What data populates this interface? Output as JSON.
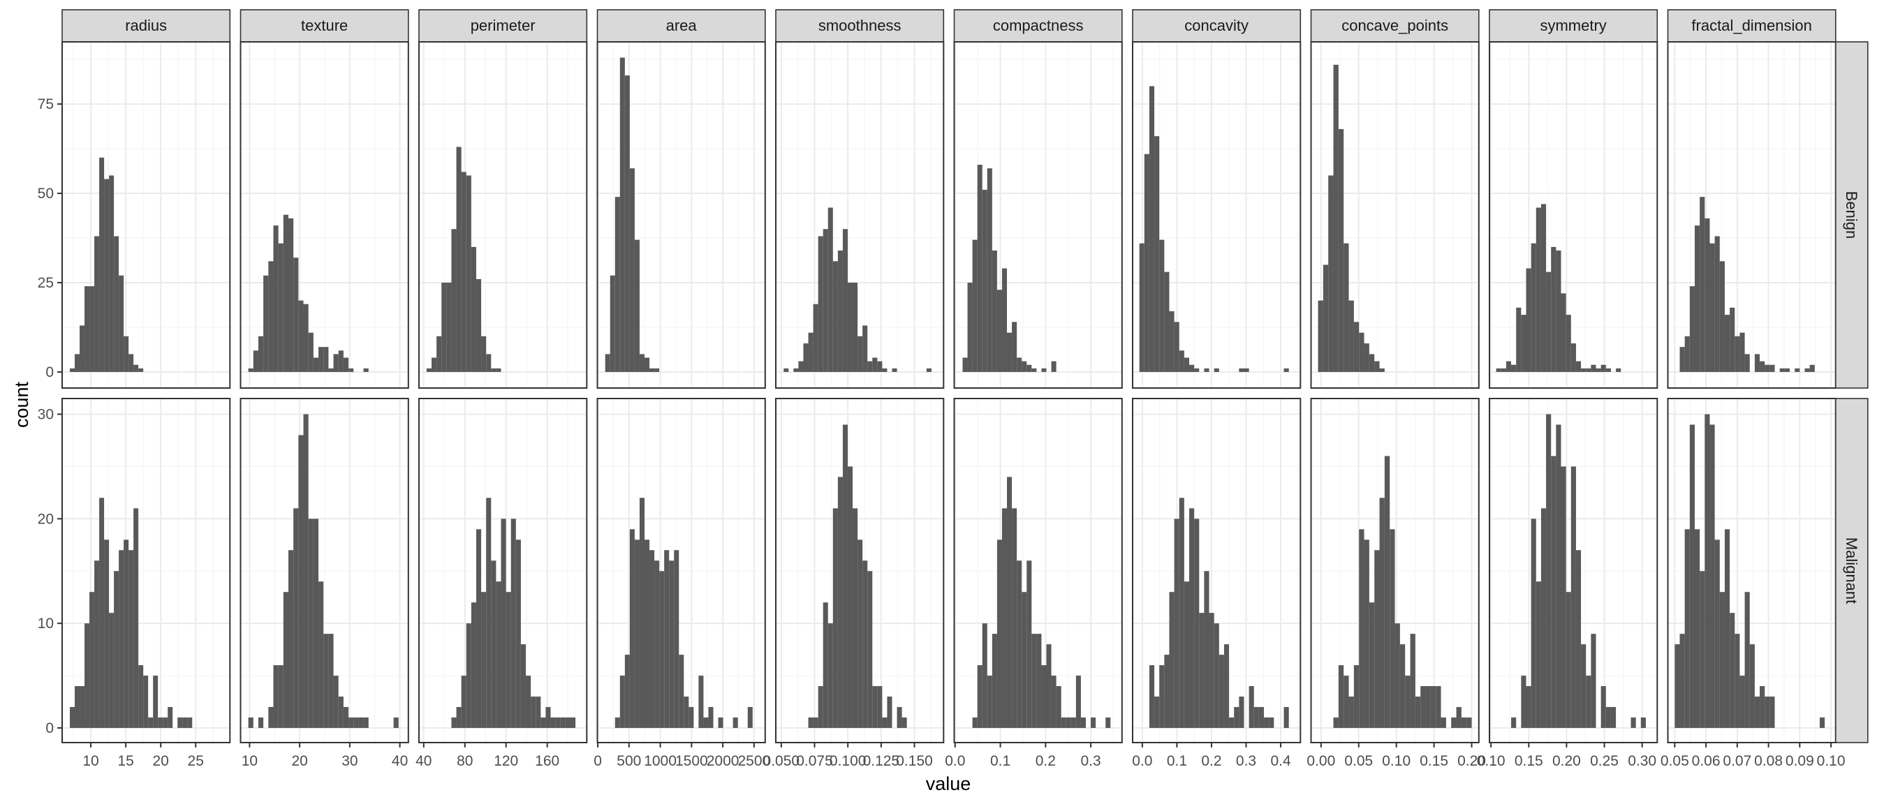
{
  "chart_data": {
    "type": "histogram",
    "title": "",
    "xlabel": "value",
    "ylabel": "count",
    "grid": true,
    "facet_rows": [
      "Benign",
      "Malignant"
    ],
    "row_ylim": {
      "Benign": [
        -4.5,
        92.4
      ],
      "Malignant": [
        -1.4,
        31.5
      ]
    },
    "row_yticks": {
      "Benign": [
        0,
        25,
        50,
        75
      ],
      "Malignant": [
        0,
        10,
        20,
        30
      ]
    },
    "colors": {
      "bar": "#595959",
      "panel_border": "#333333",
      "strip_fill": "#d9d9d9",
      "grid_major": "#ebebeb",
      "grid_minor": "#f5f5f5",
      "tick_text": "#4d4d4d"
    },
    "panels": [
      {
        "name": "radius",
        "xlim": [
          5.9,
          29.9
        ],
        "xticks": [
          10,
          15,
          20,
          25
        ],
        "xtick_labels": [
          "10",
          "15",
          "20",
          "25"
        ],
        "bin_start": 7.0,
        "bin_width": 0.7,
        "Benign": [
          1,
          5,
          13,
          24,
          24,
          38,
          60,
          54,
          55,
          38,
          27,
          10,
          5,
          2,
          1
        ],
        "Malignant_offset": 5,
        "Malignant": [
          2,
          4,
          4,
          10,
          13,
          16,
          22,
          18,
          11,
          15,
          17,
          18,
          17,
          21,
          6,
          5,
          1,
          5,
          1,
          1,
          2,
          0,
          1,
          1,
          1
        ]
      },
      {
        "name": "texture",
        "xlim": [
          8.2,
          41.7
        ],
        "xticks": [
          10,
          20,
          30,
          40
        ],
        "xtick_labels": [
          "10",
          "20",
          "30",
          "40"
        ],
        "bin_start": 9.75,
        "bin_width": 1.0,
        "Benign": [
          1,
          6,
          10,
          27,
          31,
          41,
          36,
          44,
          43,
          32,
          20,
          19,
          11,
          4,
          7,
          7,
          1,
          5,
          6,
          4,
          1,
          0,
          0,
          1
        ],
        "Malignant_offset": 0,
        "Malignant": [
          1,
          0,
          1,
          0,
          2,
          6,
          6,
          13,
          17,
          21,
          28,
          30,
          20,
          20,
          14,
          9,
          9,
          5,
          3,
          2,
          1,
          1,
          1,
          1,
          0,
          0,
          0,
          0,
          0,
          1
        ]
      },
      {
        "name": "perimeter",
        "xlim": [
          35.4,
          198.4
        ],
        "xticks": [
          40,
          80,
          120,
          160
        ],
        "xtick_labels": [
          "40",
          "80",
          "120",
          "160"
        ],
        "bin_start": 42.8,
        "bin_width": 4.82,
        "Benign": [
          1,
          4,
          10,
          25,
          25,
          40,
          63,
          56,
          55,
          35,
          26,
          10,
          5,
          1,
          1
        ],
        "Malignant_offset": 0,
        "Malignant": [
          0,
          0,
          0,
          0,
          0,
          1,
          2,
          5,
          10,
          12,
          19,
          13,
          22,
          16,
          14,
          20,
          13,
          20,
          18,
          8,
          5,
          3,
          3,
          1,
          2,
          1,
          1,
          1,
          1,
          1
        ]
      },
      {
        "name": "area",
        "xlim": [
          -6,
          2678
        ],
        "xticks": [
          0,
          500,
          1000,
          1500,
          2000,
          2500
        ],
        "xtick_labels": [
          "0",
          "500",
          "1000",
          "1500",
          "2000",
          "2500"
        ],
        "bin_start": 119,
        "bin_width": 78.6,
        "Benign": [
          5,
          27,
          49,
          88,
          83,
          57,
          37,
          5,
          4,
          1,
          1
        ],
        "Malignant_offset": 0,
        "Malignant": [
          0,
          0,
          1,
          5,
          7,
          19,
          18,
          22,
          18,
          17,
          16,
          15,
          17,
          16,
          17,
          7,
          3,
          2,
          0,
          5,
          1,
          2,
          0,
          1,
          0,
          0,
          1,
          0,
          0,
          2
        ]
      },
      {
        "name": "smoothness",
        "xlim": [
          0.0459,
          0.1719
        ],
        "xticks": [
          0.05,
          0.075,
          0.1,
          0.125,
          0.15
        ],
        "xtick_labels": [
          "0.050",
          "0.075",
          "0.100",
          "0.125",
          "0.150"
        ],
        "bin_start": 0.0518,
        "bin_width": 0.0037,
        "Benign": [
          1,
          0,
          1,
          3,
          8,
          11,
          19,
          38,
          40,
          46,
          31,
          34,
          40,
          25,
          25,
          10,
          13,
          3,
          4,
          3,
          1,
          0,
          1,
          0,
          0,
          0,
          0,
          0,
          0,
          1
        ],
        "Malignant_offset": 0,
        "Malignant": [
          0,
          0,
          0,
          0,
          0,
          1,
          1,
          4,
          12,
          10,
          21,
          24,
          29,
          25,
          21,
          18,
          16,
          15,
          4,
          4,
          1,
          3,
          0,
          2,
          1
        ]
      },
      {
        "name": "compactness",
        "xlim": [
          -0.002,
          0.369
        ],
        "xticks": [
          0.0,
          0.1,
          0.2,
          0.3
        ],
        "xtick_labels": [
          "0.0",
          "0.1",
          "0.2",
          "0.3"
        ],
        "bin_start": 0.0165,
        "bin_width": 0.0109,
        "Benign": [
          4,
          25,
          37,
          58,
          51,
          57,
          34,
          23,
          29,
          11,
          14,
          4,
          3,
          2,
          1,
          0,
          1,
          0,
          3
        ],
        "Malignant_offset": 0,
        "Malignant": [
          0,
          0,
          1,
          6,
          10,
          5,
          9,
          18,
          21,
          24,
          21,
          16,
          13,
          16,
          9,
          9,
          6,
          8,
          5,
          4,
          1,
          1,
          1,
          5,
          1,
          0,
          1,
          0,
          0,
          1
        ]
      },
      {
        "name": "concavity",
        "xlim": [
          -0.028,
          0.457
        ],
        "xticks": [
          0.0,
          0.1,
          0.2,
          0.3,
          0.4
        ],
        "xtick_labels": [
          "0.0",
          "0.1",
          "0.2",
          "0.3",
          "0.4"
        ],
        "bin_start": -0.0085,
        "bin_width": 0.0144,
        "Benign": [
          36,
          61,
          80,
          66,
          37,
          28,
          17,
          14,
          6,
          4,
          2,
          1,
          0,
          1,
          0,
          1,
          0,
          0,
          0,
          0,
          1,
          1,
          0,
          0,
          0,
          0,
          0,
          0,
          0,
          1
        ],
        "Malignant_offset": 0,
        "Malignant": [
          0,
          0,
          6,
          3,
          6,
          7,
          13,
          20,
          22,
          14,
          21,
          20,
          11,
          15,
          11,
          10,
          7,
          8,
          1,
          2,
          3,
          0,
          4,
          2,
          2,
          1,
          1,
          0,
          0,
          2
        ]
      },
      {
        "name": "concave_points",
        "xlim": [
          -0.0133,
          0.2095
        ],
        "xticks": [
          0.0,
          0.05,
          0.1,
          0.15,
          0.2
        ],
        "xtick_labels": [
          "0.00",
          "0.05",
          "0.10",
          "0.15",
          "0.20"
        ],
        "bin_start": -0.004,
        "bin_width": 0.0068,
        "Benign": [
          20,
          30,
          55,
          86,
          68,
          36,
          20,
          14,
          11,
          8,
          5,
          3,
          1
        ],
        "Malignant_offset": 0,
        "Malignant": [
          0,
          0,
          0,
          1,
          6,
          5,
          3,
          6,
          19,
          18,
          12,
          17,
          22,
          26,
          19,
          10,
          8,
          5,
          9,
          3,
          4,
          4,
          4,
          4,
          1,
          0,
          1,
          2,
          1,
          1
        ]
      },
      {
        "name": "symmetry",
        "xlim": [
          0.098,
          0.32
        ],
        "xticks": [
          0.1,
          0.15,
          0.2,
          0.25,
          0.3
        ],
        "xtick_labels": [
          "0.10",
          "0.15",
          "0.20",
          "0.25",
          "0.30"
        ],
        "bin_start": 0.1069,
        "bin_width": 0.0066,
        "Benign": [
          1,
          1,
          3,
          2,
          18,
          16,
          29,
          36,
          46,
          47,
          28,
          35,
          34,
          22,
          16,
          8,
          3,
          1,
          1,
          2,
          1,
          2,
          1,
          0,
          1
        ],
        "Malignant_offset": 0,
        "Malignant": [
          0,
          0,
          0,
          1,
          0,
          5,
          4,
          20,
          14,
          21,
          30,
          26,
          29,
          25,
          13,
          25,
          17,
          8,
          5,
          9,
          0,
          4,
          2,
          2,
          0,
          0,
          0,
          1,
          0,
          1
        ]
      },
      {
        "name": "fractal_dimension",
        "xlim": [
          0.0478,
          0.1015
        ],
        "xticks": [
          0.05,
          0.06,
          0.07,
          0.08,
          0.09,
          0.1
        ],
        "xtick_labels": [
          "0.05",
          "0.06",
          "0.07",
          "0.08",
          "0.09",
          "0.10"
        ],
        "bin_start": 0.05,
        "bin_width": 0.0016,
        "Benign": [
          0,
          7,
          10,
          24,
          41,
          49,
          43,
          36,
          38,
          31,
          16,
          18,
          10,
          11,
          5,
          0,
          5,
          3,
          2,
          2,
          0,
          1,
          1,
          0,
          1,
          0,
          1,
          2
        ],
        "Malignant_offset": 0,
        "Malignant": [
          8,
          9,
          19,
          29,
          19,
          15,
          30,
          29,
          18,
          13,
          19,
          11,
          9,
          5,
          13,
          8,
          3,
          4,
          3,
          3,
          0,
          0,
          0,
          0,
          0,
          0,
          0,
          0,
          0,
          1
        ]
      }
    ]
  }
}
